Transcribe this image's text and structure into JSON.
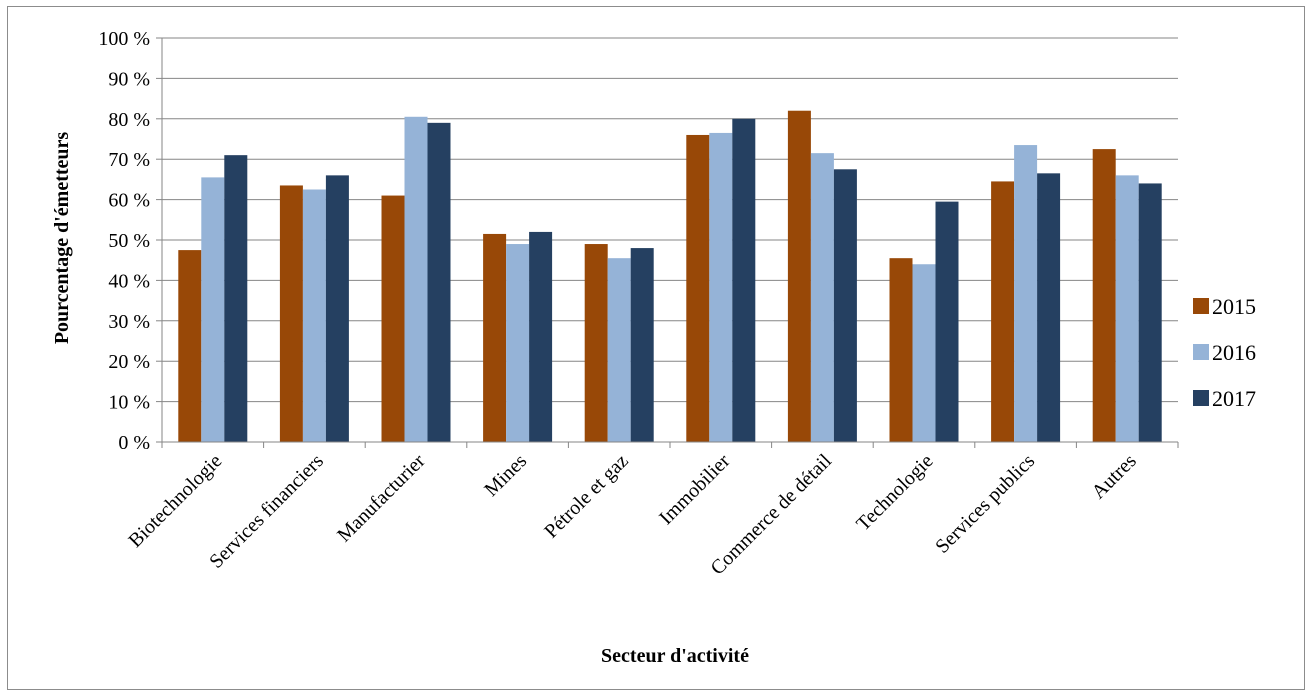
{
  "chart_data": {
    "type": "bar",
    "title": "",
    "xlabel": "Secteur d'activité",
    "ylabel": "Pourcentage d'émetteurs",
    "ylim": [
      0,
      100
    ],
    "y_ticks": [
      "0 %",
      "10 %",
      "20 %",
      "30 %",
      "40 %",
      "50 %",
      "60 %",
      "70 %",
      "80 %",
      "90 %",
      "100 %"
    ],
    "grid": true,
    "legend_position": "right",
    "categories": [
      "Biotechnologie",
      "Services financiers",
      "Manufacturier",
      "Mines",
      "Pétrole et gaz",
      "Immobilier",
      "Commerce de détail",
      "Technologie",
      "Services publics",
      "Autres"
    ],
    "series": [
      {
        "name": "2015",
        "color": "#984807",
        "values": [
          47.5,
          63.5,
          61,
          51.5,
          49,
          76,
          82,
          45.5,
          64.5,
          72.5
        ]
      },
      {
        "name": "2016",
        "color": "#95b3d7",
        "values": [
          65.5,
          62.5,
          80.5,
          49,
          45.5,
          76.5,
          71.5,
          44,
          73.5,
          66
        ]
      },
      {
        "name": "2017",
        "color": "#254061",
        "values": [
          71,
          66,
          79,
          52,
          48,
          80,
          67.5,
          59.5,
          66.5,
          64
        ]
      }
    ]
  }
}
